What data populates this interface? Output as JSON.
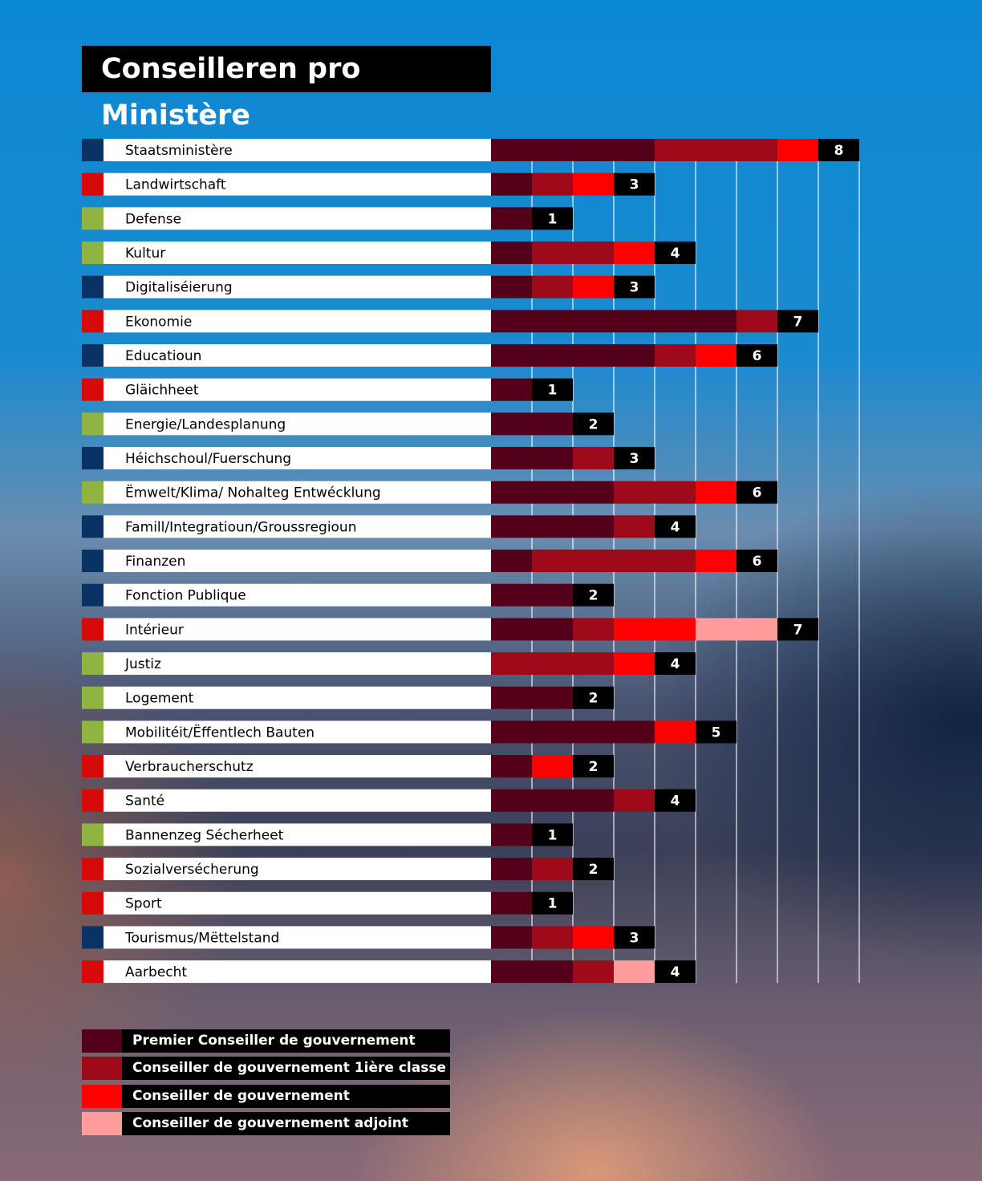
{
  "title": "Conseilleren pro Ministère",
  "chart_data": {
    "type": "bar",
    "orientation": "horizontal",
    "stacked": true,
    "title": "Conseilleren pro Ministère",
    "grid": true,
    "legend_placement": "bottom-left",
    "group_colors": {
      "navy": "#0a3263",
      "red": "#d70a0a",
      "green": "#8fb441"
    },
    "categories": [
      "Staatsministère",
      "Landwirtschaft",
      "Defense",
      "Kultur",
      "Digitaliséierung",
      "Ekonomie",
      "Educatioun",
      "Gläichheet",
      "Energie/Landesplanung",
      "Héichschoul/Fuerschung",
      "Ëmwelt/Klima/ Nohalteg Entwécklung",
      "Famill/Integratioun/Groussregioun",
      "Finanzen",
      "Fonction Publique",
      "Intérieur",
      "Justiz",
      "Logement",
      "Mobilitéit/Ëffentlech Bauten",
      "Verbraucherschutz",
      "Santé",
      "Bannenzeg Sécherheet",
      "Sozialversécherung",
      "Sport",
      "Tourismus/Mëttelstand",
      "Aarbecht"
    ],
    "category_group": [
      "navy",
      "red",
      "green",
      "green",
      "navy",
      "red",
      "navy",
      "red",
      "green",
      "navy",
      "green",
      "navy",
      "navy",
      "navy",
      "red",
      "green",
      "green",
      "green",
      "red",
      "red",
      "green",
      "red",
      "red",
      "navy",
      "red"
    ],
    "series": [
      {
        "name": "Premier Conseiller de gouvernement",
        "color": "#55001a",
        "values": [
          4,
          1,
          1,
          1,
          1,
          6,
          4,
          1,
          2,
          2,
          3,
          3,
          1,
          2,
          2,
          0,
          2,
          4,
          1,
          3,
          1,
          1,
          1,
          1,
          2
        ]
      },
      {
        "name": "Conseiller de gouvernement 1ière classe",
        "color": "#9e0a1a",
        "values": [
          3,
          1,
          0,
          2,
          1,
          1,
          1,
          0,
          0,
          1,
          2,
          1,
          4,
          0,
          1,
          3,
          0,
          0,
          0,
          1,
          0,
          1,
          0,
          1,
          1
        ]
      },
      {
        "name": "Conseiller de gouvernement",
        "color": "#ff0000",
        "values": [
          1,
          1,
          0,
          1,
          1,
          0,
          1,
          0,
          0,
          0,
          1,
          0,
          1,
          0,
          2,
          1,
          0,
          1,
          1,
          0,
          0,
          0,
          0,
          1,
          0
        ]
      },
      {
        "name": "Conseiller de gouvernement adjoint",
        "color": "#ff9c9c",
        "values": [
          0,
          0,
          0,
          0,
          0,
          0,
          0,
          0,
          0,
          0,
          0,
          0,
          0,
          0,
          2,
          0,
          0,
          0,
          0,
          0,
          0,
          0,
          0,
          0,
          1
        ]
      }
    ],
    "totals": [
      8,
      3,
      1,
      4,
      3,
      7,
      6,
      1,
      2,
      3,
      6,
      4,
      6,
      2,
      7,
      4,
      2,
      5,
      2,
      4,
      1,
      2,
      1,
      3,
      4
    ],
    "xlim": [
      0,
      9
    ]
  }
}
